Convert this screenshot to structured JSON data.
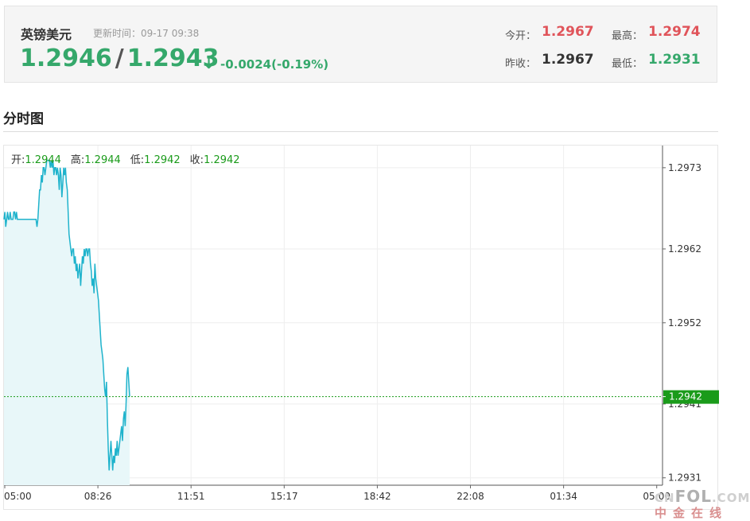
{
  "header": {
    "title": "英镑美元",
    "update_label": "更新时间：",
    "update_time": "09-17 09:38",
    "bid": "1.2946",
    "slash": "/",
    "ask": "1.2943",
    "arrow": "↓",
    "change": "-0.0024(-0.19%)",
    "stats": {
      "open_label": "今开：",
      "open": "1.2967",
      "high_label": "最高：",
      "high": "1.2974",
      "prev_close_label": "昨收：",
      "prev_close": "1.2967",
      "low_label": "最低：",
      "low": "1.2931"
    }
  },
  "section_title": "分时图",
  "candle_info": {
    "open_label": "开:",
    "open": "1.2944",
    "high_label": "高:",
    "high": "1.2944",
    "low_label": "低:",
    "low": "1.2942",
    "close_label": "收:",
    "close": "1.2942"
  },
  "logo": {
    "text_prefix": "CN",
    "text_main": "FOL",
    "text_suffix": ".COM",
    "text_cn": "中金在线"
  },
  "colors": {
    "line": "#1fb3cc",
    "fill": "#e8f7f9",
    "current_tag": "#1a9b1a",
    "up": "#e0545a",
    "down": "#35a86b"
  },
  "chart_data": {
    "type": "line",
    "title": "分时图",
    "x_ticks": [
      "05:00",
      "08:26",
      "11:51",
      "15:17",
      "18:42",
      "22:08",
      "01:34",
      "05:00"
    ],
    "y_ticks": [
      "1.2973",
      "1.2962",
      "1.2952",
      "1.2941",
      "1.2931"
    ],
    "ylim": [
      1.293,
      1.2976
    ],
    "current_price": "1.2942",
    "grid": true,
    "series": [
      {
        "values": [
          1.2966,
          1.2967,
          1.2965,
          1.2966,
          1.2967,
          1.2966,
          1.2966,
          1.2967,
          1.2966,
          1.2966,
          1.2966,
          1.2967,
          1.2967,
          1.2966,
          1.2967,
          1.2966,
          1.2966,
          1.2966,
          1.2966,
          1.2966,
          1.2966,
          1.2966,
          1.2966,
          1.2966,
          1.2966,
          1.2966,
          1.2966,
          1.2966,
          1.2966,
          1.2966,
          1.2966,
          1.2966,
          1.2966,
          1.2966,
          1.2966,
          1.2966,
          1.2966,
          1.2965,
          1.2966,
          1.2968,
          1.297,
          1.297,
          1.2972,
          1.2971,
          1.2973,
          1.2973,
          1.2972,
          1.2973,
          1.2974,
          1.2974,
          1.2974,
          1.2974,
          1.2973,
          1.2974,
          1.2973,
          1.2974,
          1.2972,
          1.2973,
          1.2973,
          1.2972,
          1.2973,
          1.2972,
          1.297,
          1.2973,
          1.2972,
          1.2969,
          1.2971,
          1.2973,
          1.2972,
          1.2973,
          1.2971,
          1.297,
          1.2967,
          1.2964,
          1.2963,
          1.2962,
          1.2961,
          1.2962,
          1.2962,
          1.296,
          1.2961,
          1.2959,
          1.296,
          1.2958,
          1.2959,
          1.296,
          1.2957,
          1.2959,
          1.2961,
          1.296,
          1.2962,
          1.2961,
          1.2962,
          1.2962,
          1.2961,
          1.2962,
          1.2962,
          1.296,
          1.2959,
          1.2957,
          1.2958,
          1.2956,
          1.296,
          1.2958,
          1.2957,
          1.2956,
          1.2955,
          1.2953,
          1.2951,
          1.2949,
          1.2948,
          1.2947,
          1.2945,
          1.2943,
          1.2942,
          1.2944,
          1.2939,
          1.2935,
          1.2932,
          1.2934,
          1.2936,
          1.2934,
          1.2932,
          1.2934,
          1.2933,
          1.2935,
          1.2934,
          1.2936,
          1.2934,
          1.2935,
          1.2936,
          1.2937,
          1.2938,
          1.2936,
          1.2939,
          1.294,
          1.2938,
          1.2941,
          1.2945,
          1.2946,
          1.2944,
          1.2942
        ]
      }
    ]
  }
}
